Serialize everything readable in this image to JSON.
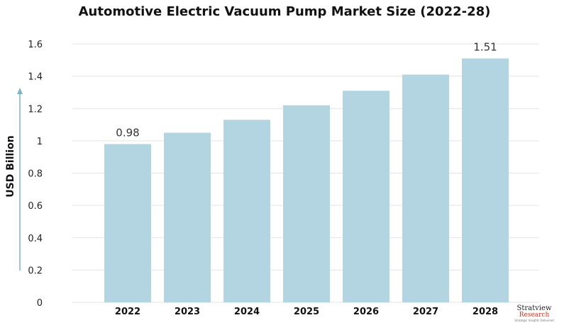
{
  "chart_data": {
    "type": "bar",
    "title": "Automotive Electric Vacuum Pump Market Size (2022-28)",
    "xlabel": "",
    "ylabel": "USD Billion",
    "categories": [
      "2022",
      "2023",
      "2024",
      "2025",
      "2026",
      "2027",
      "2028"
    ],
    "values": [
      0.98,
      1.05,
      1.13,
      1.22,
      1.31,
      1.41,
      1.51
    ],
    "data_labels": [
      {
        "category": "2022",
        "text": "0.98"
      },
      {
        "category": "2028",
        "text": "1.51"
      }
    ],
    "yticks": [
      "0",
      "0.2",
      "0.4",
      "0.6",
      "0.8",
      "1",
      "1.2",
      "1.4",
      "1.6"
    ],
    "ylim": [
      0,
      1.6
    ],
    "grid": true,
    "legend": "none",
    "bar_color": "#b3d5e2",
    "grid_color": "#e3e3e3",
    "axis_arrow_color": "#7fb3c8"
  },
  "logo": {
    "brand": "Stratview",
    "sub": "Research",
    "tagline": "Strategic Insights Delivered"
  }
}
